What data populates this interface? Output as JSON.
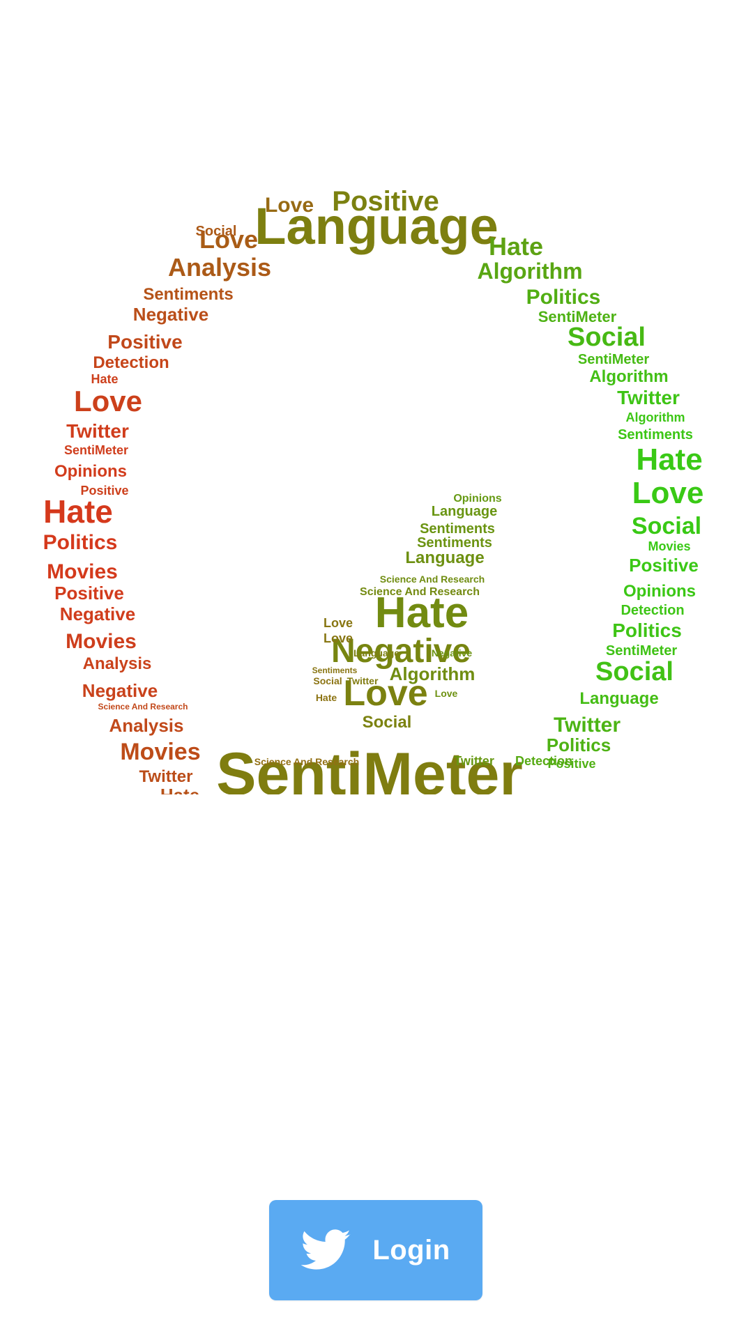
{
  "app": {
    "name": "SentiMeter"
  },
  "wordcloud": {
    "words": [
      "Language",
      "Positive",
      "Love",
      "Social",
      "Analysis",
      "Hate",
      "Algorithm",
      "Politics",
      "SentiMeter",
      "Sentiments",
      "Negative",
      "Detection",
      "Twitter",
      "Opinions",
      "Movies",
      "Science And Research"
    ],
    "colors": {
      "red": "#e0301e",
      "olive": "#7d7f10",
      "green": "#2fd416"
    }
  },
  "login": {
    "label": "Login",
    "icon": "twitter-bird-icon",
    "color": "#5aaaf2"
  }
}
